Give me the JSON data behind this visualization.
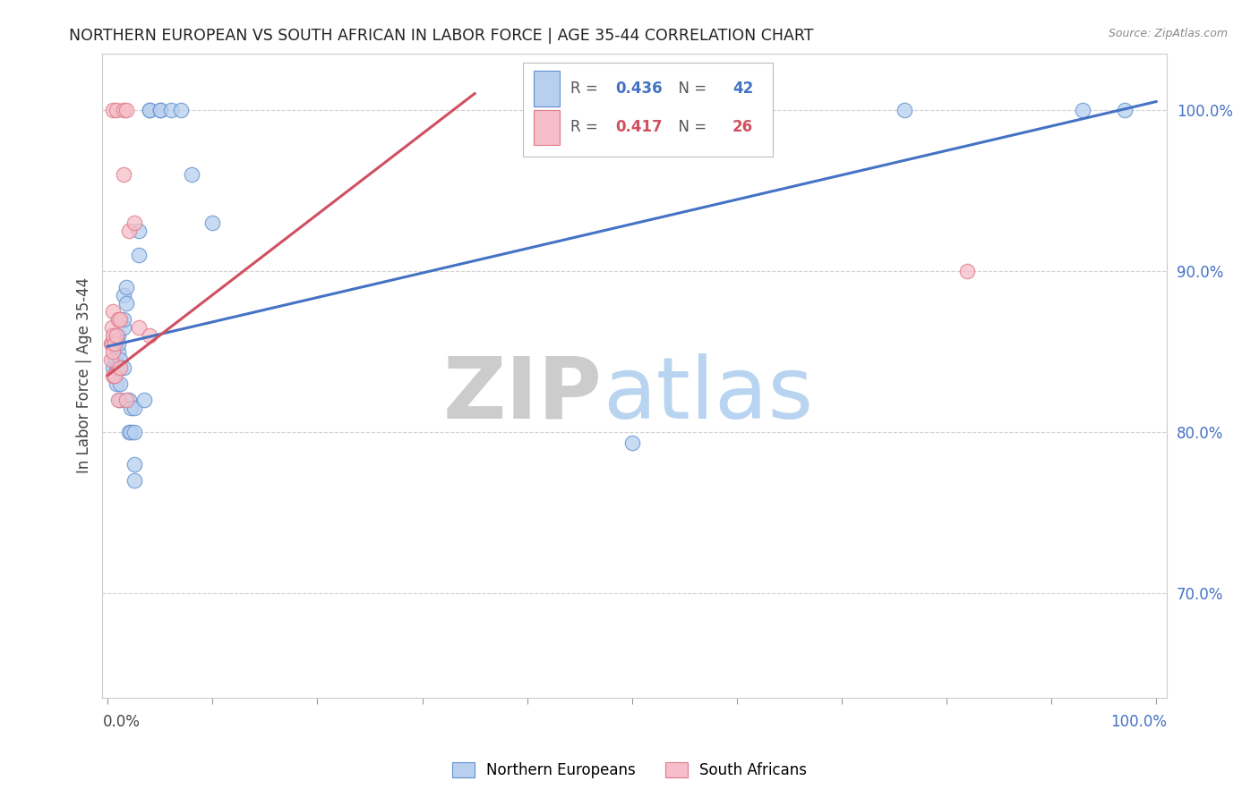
{
  "title": "NORTHERN EUROPEAN VS SOUTH AFRICAN IN LABOR FORCE | AGE 35-44 CORRELATION CHART",
  "source": "Source: ZipAtlas.com",
  "ylabel": "In Labor Force | Age 35-44",
  "ytick_labels": [
    "70.0%",
    "80.0%",
    "90.0%",
    "100.0%"
  ],
  "ytick_values": [
    0.7,
    0.8,
    0.9,
    1.0
  ],
  "xlim": [
    -0.005,
    1.01
  ],
  "ylim": [
    0.635,
    1.035
  ],
  "legend_r_blue": "0.436",
  "legend_n_blue": "42",
  "legend_r_pink": "0.417",
  "legend_n_pink": "26",
  "blue_fill": "#b8d0ee",
  "pink_fill": "#f5bec8",
  "blue_edge": "#6090d0",
  "pink_edge": "#e07888",
  "blue_line": "#4472c4",
  "pink_line": "#d05060",
  "text_blue": "#4472c4",
  "text_pink": "#d05060",
  "text_gray": "#555555",
  "watermark_zip_color": "#c8d8ee",
  "watermark_atlas_color": "#b0ccee",
  "grid_color": "#d0d0d0",
  "bg_color": "#ffffff",
  "blue_x": [
    0.005,
    0.005,
    0.007,
    0.007,
    0.008,
    0.008,
    0.01,
    0.01,
    0.01,
    0.01,
    0.012,
    0.012,
    0.012,
    0.015,
    0.015,
    0.015,
    0.015,
    0.018,
    0.018,
    0.02,
    0.02,
    0.022,
    0.022,
    0.025,
    0.025,
    0.025,
    0.025,
    0.03,
    0.03,
    0.035,
    0.04,
    0.04,
    0.05,
    0.05,
    0.06,
    0.07,
    0.08,
    0.1,
    0.5,
    0.76,
    0.93,
    0.97
  ],
  "blue_y": [
    0.855,
    0.84,
    0.845,
    0.86,
    0.84,
    0.83,
    0.86,
    0.85,
    0.84,
    0.855,
    0.82,
    0.845,
    0.83,
    0.865,
    0.84,
    0.87,
    0.885,
    0.89,
    0.88,
    0.82,
    0.8,
    0.815,
    0.8,
    0.815,
    0.8,
    0.78,
    0.77,
    0.925,
    0.91,
    0.82,
    1.0,
    1.0,
    1.0,
    1.0,
    1.0,
    1.0,
    0.96,
    0.93,
    0.793,
    1.0,
    1.0,
    1.0
  ],
  "pink_x": [
    0.003,
    0.003,
    0.004,
    0.004,
    0.005,
    0.005,
    0.005,
    0.005,
    0.005,
    0.007,
    0.007,
    0.008,
    0.008,
    0.01,
    0.01,
    0.012,
    0.012,
    0.015,
    0.015,
    0.018,
    0.018,
    0.02,
    0.025,
    0.03,
    0.04,
    0.82
  ],
  "pink_y": [
    0.855,
    0.845,
    0.855,
    0.865,
    0.875,
    0.86,
    0.85,
    0.835,
    1.0,
    0.835,
    0.855,
    1.0,
    0.86,
    0.87,
    0.82,
    0.87,
    0.84,
    0.96,
    1.0,
    0.82,
    1.0,
    0.925,
    0.93,
    0.865,
    0.86,
    0.9
  ],
  "blue_trendline_x0": 0.0,
  "blue_trendline_y0": 0.853,
  "blue_trendline_x1": 1.0,
  "blue_trendline_y1": 1.005,
  "pink_trendline_x0": 0.0,
  "pink_trendline_y0": 0.835,
  "pink_trendline_x1": 0.35,
  "pink_trendline_y1": 1.01
}
